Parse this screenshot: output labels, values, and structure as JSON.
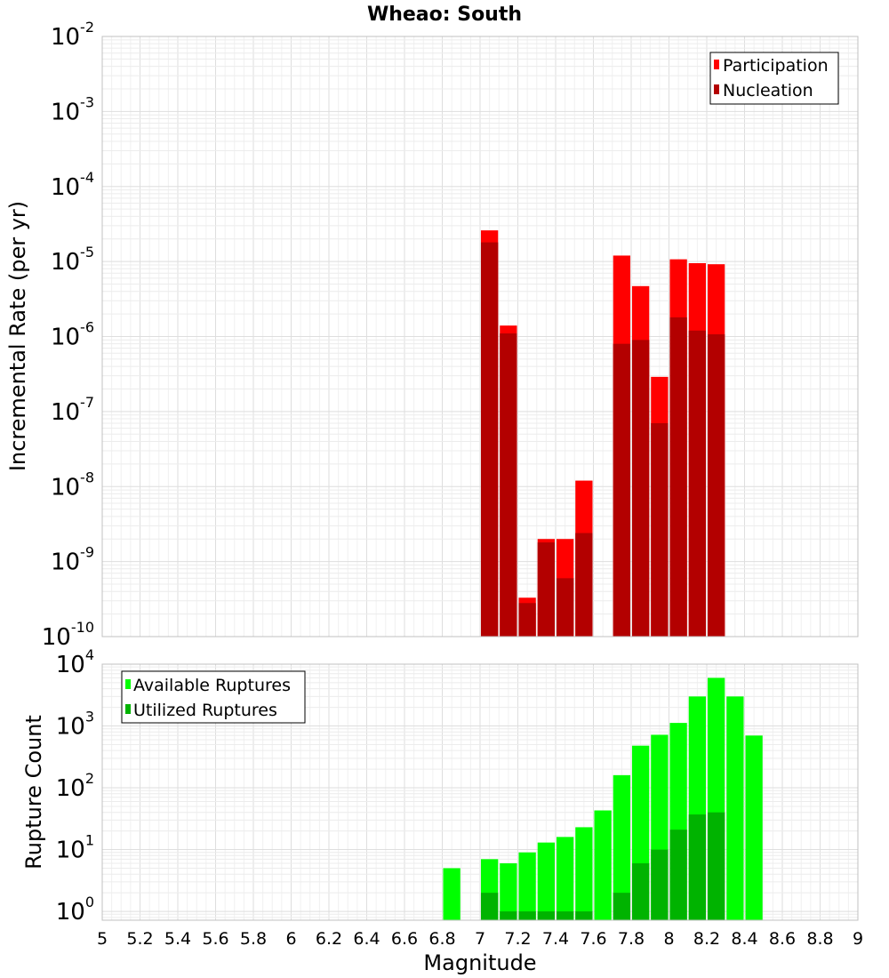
{
  "title": "Wheao: South",
  "xlabel": "Magnitude",
  "colors": {
    "participation": "#ff0000",
    "nucleation": "#b30000",
    "available": "#00ff00",
    "utilized": "#00b300",
    "grid": "#e4e4e4",
    "frame": "#c0c0c0"
  },
  "chart_data": [
    {
      "type": "bar",
      "ylabel": "Incremental Rate (per yr)",
      "yscale": "log",
      "ylim": [
        1e-10,
        0.01
      ],
      "xlim": [
        5,
        9
      ],
      "grid": true,
      "legend_position": "top-right",
      "ytick_exponents": [
        "-2",
        "-3",
        "-4",
        "-5",
        "-6",
        "-7",
        "-8",
        "-9",
        "-10"
      ],
      "series": [
        {
          "name": "Participation",
          "x": [
            7.05,
            7.15,
            7.25,
            7.35,
            7.45,
            7.55,
            7.75,
            7.85,
            7.95,
            8.05,
            8.15,
            8.25
          ],
          "values": [
            2.6e-05,
            1.4e-06,
            3.3e-10,
            2e-09,
            2e-09,
            1.2e-08,
            1.2e-05,
            4.7e-06,
            2.9e-07,
            1.07e-05,
            9.5e-06,
            9.2e-06
          ]
        },
        {
          "name": "Nucleation",
          "x": [
            7.05,
            7.15,
            7.25,
            7.35,
            7.45,
            7.55,
            7.75,
            7.85,
            7.95,
            8.05,
            8.15,
            8.25
          ],
          "values": [
            1.8e-05,
            1.1e-06,
            2.8e-10,
            1.8e-09,
            6e-10,
            2.4e-09,
            8e-07,
            9e-07,
            7e-08,
            1.8e-06,
            1.2e-06,
            1.07e-06
          ]
        }
      ]
    },
    {
      "type": "bar",
      "ylabel": "Rupture Count",
      "yscale": "log",
      "ylim": [
        0.72,
        10000
      ],
      "xlim": [
        5,
        9
      ],
      "grid": true,
      "legend_position": "top-left",
      "ytick_exponents": [
        "4",
        "3",
        "2",
        "1",
        "0"
      ],
      "xticks": [
        "5",
        "5.2",
        "5.4",
        "5.6",
        "5.8",
        "6",
        "6.2",
        "6.4",
        "6.6",
        "6.8",
        "7",
        "7.2",
        "7.4",
        "7.6",
        "7.8",
        "8",
        "8.2",
        "8.4",
        "8.6",
        "8.8",
        "9"
      ],
      "series": [
        {
          "name": "Available Ruptures",
          "x": [
            6.85,
            7.05,
            7.15,
            7.25,
            7.35,
            7.45,
            7.55,
            7.65,
            7.75,
            7.85,
            7.95,
            8.05,
            8.15,
            8.25,
            8.35,
            8.45
          ],
          "values": [
            5,
            7,
            6,
            9,
            13,
            16,
            23,
            43,
            160,
            480,
            720,
            1120,
            3000,
            6000,
            3000,
            700
          ]
        },
        {
          "name": "Utilized Ruptures",
          "x": [
            7.05,
            7.15,
            7.25,
            7.35,
            7.45,
            7.55,
            7.75,
            7.85,
            7.95,
            8.05,
            8.15,
            8.25
          ],
          "values": [
            2,
            1,
            1,
            1,
            1,
            1,
            2,
            6,
            10,
            21,
            37,
            40
          ]
        }
      ]
    }
  ]
}
